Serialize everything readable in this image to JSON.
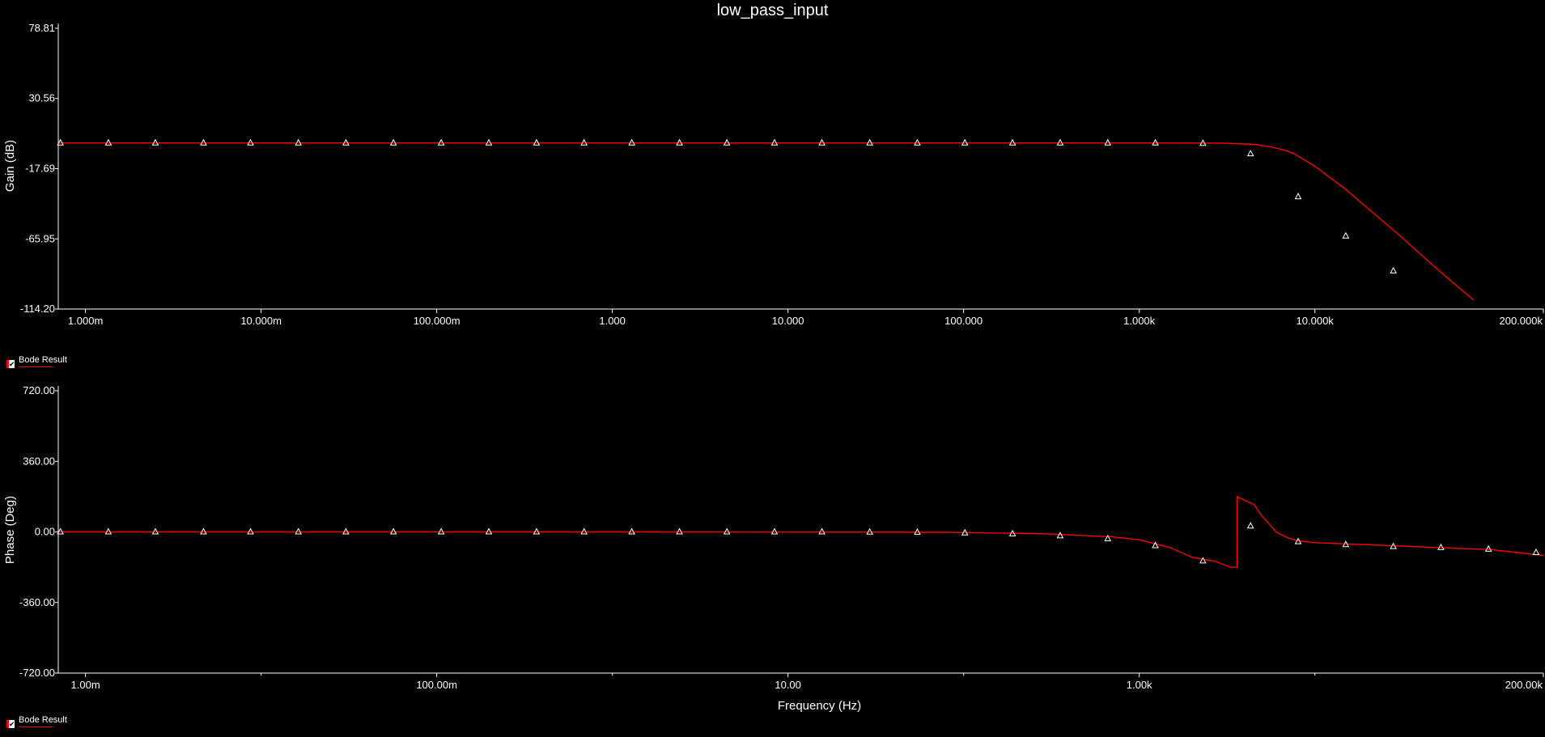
{
  "title": "low_pass_input",
  "colors": {
    "background": "#000000",
    "axis": "#ffffff",
    "series": "#ff0000",
    "marker": "#ffffff"
  },
  "legend": {
    "label": "Bode Result",
    "checked": true
  },
  "chart_data": [
    {
      "type": "line",
      "name": "gain",
      "ylabel": "Gain (dB)",
      "xscale": "log",
      "xlim": [
        0.0007,
        200000
      ],
      "ylim": [
        -114.2,
        78.81
      ],
      "yticks": [
        78.81,
        30.56,
        -17.69,
        -65.95,
        -114.2
      ],
      "ytick_labels": [
        "78.81",
        "30.56",
        "-17.69",
        "-65.95",
        "-114.20"
      ],
      "xticks": [
        0.001,
        0.01,
        0.1,
        1,
        10,
        100,
        1000,
        10000,
        200000
      ],
      "xtick_labels": [
        "1.000m",
        "10.000m",
        "100.000m",
        "1.000",
        "10.000",
        "100.000",
        "1.000k",
        "10.000k",
        "200.000k"
      ],
      "series": [
        {
          "name": "Bode Result",
          "x": [
            0.0007,
            0.001,
            1,
            1000,
            3000,
            4500,
            5500,
            6500,
            7500,
            10000,
            15000,
            20000,
            30000,
            50000,
            80000
          ],
          "y": [
            -0.01,
            -0.01,
            -0.01,
            -0.01,
            -0.1,
            -1.0,
            -2.5,
            -4.5,
            -7.0,
            -16,
            -32,
            -45,
            -63,
            -87,
            -108
          ]
        }
      ],
      "markers": {
        "x": [
          0.00072,
          0.00135,
          0.0025,
          0.0047,
          0.0087,
          0.0163,
          0.0304,
          0.0567,
          0.106,
          0.198,
          0.37,
          0.69,
          1.29,
          2.41,
          4.49,
          8.38,
          15.6,
          29.2,
          54.5,
          101.7,
          189.9,
          354.5,
          661.6,
          1235,
          2305,
          4302,
          8030,
          14990,
          27970
        ],
        "y": [
          -0.01,
          -0.01,
          -0.01,
          -0.01,
          -0.01,
          -0.01,
          -0.01,
          -0.01,
          -0.01,
          -0.01,
          -0.01,
          -0.01,
          -0.01,
          -0.01,
          -0.01,
          -0.01,
          -0.01,
          -0.01,
          -0.01,
          -0.01,
          -0.01,
          -0.01,
          -0.01,
          -0.05,
          -0.3,
          -7.5,
          -37,
          -64,
          -88
        ]
      },
      "grid": false
    },
    {
      "type": "line",
      "name": "phase",
      "ylabel": "Phase (Deg)",
      "xlabel": "Frequency (Hz)",
      "xscale": "log",
      "xlim": [
        0.0007,
        200000
      ],
      "ylim": [
        -720,
        720
      ],
      "yticks": [
        720,
        360,
        0,
        -360,
        -720
      ],
      "ytick_labels": [
        "720.00",
        "360.00",
        "0.00",
        "-360.00",
        "-720.00"
      ],
      "xticks": [
        0.001,
        0.1,
        10,
        1000,
        200000
      ],
      "xtick_labels": [
        "1.00m",
        "100.00m",
        "10.00",
        "1.00k",
        "200.00k"
      ],
      "minor_xticks": [
        0.01,
        1,
        100,
        10000
      ],
      "series": [
        {
          "name": "Bode Result",
          "x": [
            0.0007,
            1,
            30,
            100,
            300,
            700,
            1000,
            1500,
            2000,
            2700,
            3300,
            3600,
            3600,
            4500,
            5000,
            5500,
            6000,
            7000,
            8000,
            10000,
            20000,
            50000,
            100000,
            200000
          ],
          "y": [
            0,
            0,
            -1,
            -3,
            -10,
            -25,
            -40,
            -80,
            -130,
            -150,
            -180,
            -180,
            180,
            140,
            80,
            40,
            0,
            -30,
            -45,
            -55,
            -65,
            -80,
            -90,
            -120
          ]
        }
      ],
      "markers": {
        "x": [
          0.00072,
          0.00135,
          0.0025,
          0.0047,
          0.0087,
          0.0163,
          0.0304,
          0.0567,
          0.106,
          0.198,
          0.37,
          0.69,
          1.29,
          2.41,
          4.49,
          8.38,
          15.6,
          29.2,
          54.5,
          101.7,
          189.9,
          354.5,
          661.6,
          1235,
          2305,
          4302,
          8030,
          14990,
          27970,
          52190,
          97400,
          181700
        ],
        "y": [
          0,
          0,
          0,
          0,
          0,
          0,
          0,
          0,
          0,
          0,
          0,
          0,
          0,
          0,
          0,
          0,
          0,
          -1,
          -2,
          -5,
          -10,
          -20,
          -35,
          -70,
          -148,
          30,
          -50,
          -65,
          -75,
          -80,
          -88,
          -105
        ]
      },
      "grid": false
    }
  ]
}
